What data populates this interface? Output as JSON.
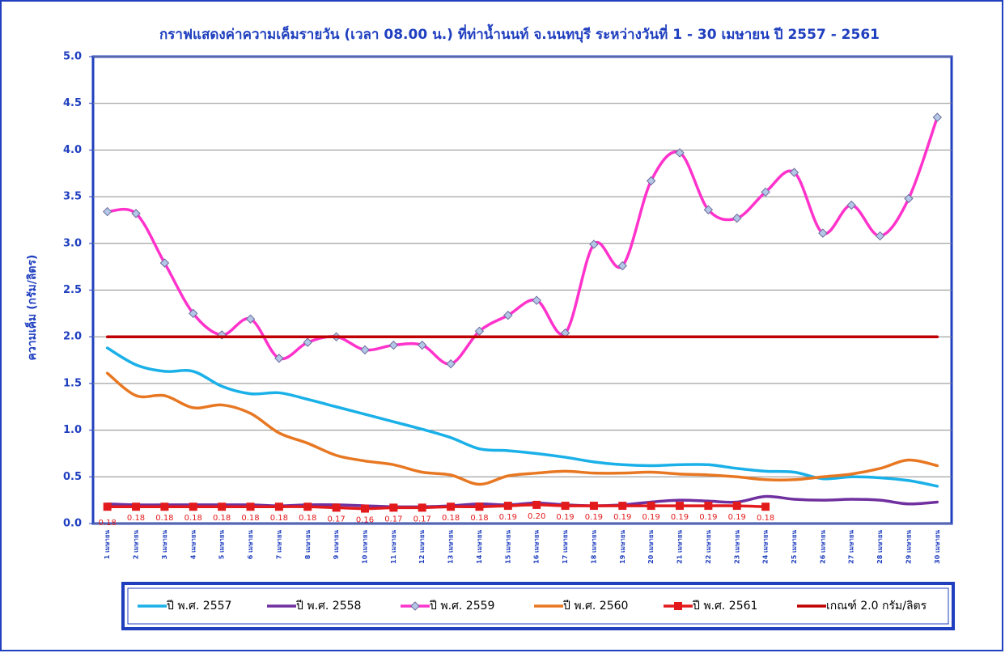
{
  "chart_data": {
    "type": "line",
    "title": "กราฟแสดงค่าความเค็มรายวัน (เวลา 08.00 น.) ที่ท่าน้ำนนท์ จ.นนทบุรี ระหว่างวันที่ 1 - 30 เมษายน ปี 2557 - 2561",
    "y_label": "ความเค็ม (กรัม/ลิตร)",
    "categories": [
      "1 เมษายน",
      "2 เมษายน",
      "3 เมษายน",
      "4 เมษายน",
      "5 เมษายน",
      "6 เมษายน",
      "7 เมษายน",
      "8 เมษายน",
      "9 เมษายน",
      "10 เมษายน",
      "11 เมษายน",
      "12 เมษายน",
      "13 เมษายน",
      "14 เมษายน",
      "15 เมษายน",
      "16 เมษายน",
      "17 เมษายน",
      "18 เมษายน",
      "19 เมษายน",
      "20 เมษายน",
      "21 เมษายน",
      "22 เมษายน",
      "23 เมษายน",
      "24 เมษายน",
      "25 เมษายน",
      "26 เมษายน",
      "27 เมษายน",
      "28 เมษายน",
      "29 เมษายน",
      "30 เมษายน"
    ],
    "ylim": [
      0,
      5
    ],
    "yticks": [
      {
        "value": 0,
        "label": "0.0"
      },
      0.5,
      {
        "value": 1,
        "label": "1.0"
      },
      1.5,
      {
        "value": 2,
        "label": "2.0"
      },
      2.5,
      {
        "value": 3,
        "label": "3.0"
      },
      3.5,
      {
        "value": 4,
        "label": "4.0"
      },
      4.5,
      {
        "value": 5,
        "label": "5.0"
      }
    ],
    "grid": true,
    "legend": "bottom",
    "series": [
      {
        "name": "ปี พ.ศ. 2557",
        "color": "#1ab0e8",
        "values": [
          1.88,
          1.7,
          1.63,
          1.63,
          1.47,
          1.39,
          1.4,
          1.33,
          1.25,
          1.17,
          1.09,
          1.01,
          0.92,
          0.8,
          0.78,
          0.75,
          0.71,
          0.66,
          0.63,
          0.62,
          0.63,
          0.63,
          0.59,
          0.56,
          0.55,
          0.48,
          0.5,
          0.49,
          0.46,
          0.4
        ]
      },
      {
        "name": "ปี พ.ศ. 2558",
        "color": "#7030a0",
        "values": [
          0.21,
          0.2,
          0.2,
          0.2,
          0.2,
          0.2,
          0.19,
          0.2,
          0.2,
          0.19,
          0.18,
          0.18,
          0.19,
          0.21,
          0.2,
          0.22,
          0.2,
          0.19,
          0.2,
          0.23,
          0.25,
          0.24,
          0.23,
          0.29,
          0.26,
          0.25,
          0.26,
          0.25,
          0.21,
          0.23
        ]
      },
      {
        "name": "ปี พ.ศ. 2559",
        "color": "#ff33cc",
        "marker": "diamond",
        "marker_color": "#b4c7e7",
        "values": [
          3.34,
          3.32,
          2.79,
          2.25,
          2.02,
          2.19,
          1.77,
          1.94,
          2.0,
          1.86,
          1.91,
          1.91,
          1.71,
          2.06,
          2.23,
          2.39,
          2.04,
          2.99,
          2.76,
          3.67,
          3.97,
          3.36,
          3.27,
          3.55,
          3.76,
          3.11,
          3.41,
          3.08,
          3.48,
          4.35
        ]
      },
      {
        "name": "ปี พ.ศ. 2560",
        "color": "#e87722",
        "values": [
          1.61,
          1.37,
          1.37,
          1.24,
          1.27,
          1.18,
          0.97,
          0.86,
          0.73,
          0.67,
          0.63,
          0.55,
          0.52,
          0.42,
          0.51,
          0.54,
          0.56,
          0.54,
          0.54,
          0.55,
          0.53,
          0.52,
          0.5,
          0.47,
          0.47,
          0.5,
          0.53,
          0.59,
          0.68,
          0.62
        ]
      },
      {
        "name": "ปี พ.ศ. 2561",
        "color": "#e31a1c",
        "marker": "square",
        "values": [
          0.18,
          0.18,
          0.18,
          0.18,
          0.18,
          0.18,
          0.18,
          0.18,
          0.17,
          0.16,
          0.17,
          0.17,
          0.18,
          0.18,
          0.19,
          0.2,
          0.19,
          0.19,
          0.19,
          0.19,
          0.19,
          0.19,
          0.19,
          0.18,
          null,
          null,
          null,
          null,
          null,
          null
        ],
        "value_labels": [
          "0.18",
          "0.18",
          "0.18",
          "0.18",
          "0.18",
          "0.18",
          "0.18",
          "0.18",
          "0.17",
          "0.16",
          "0.17",
          "0.17",
          "0.18",
          "0.18",
          "0.19",
          "0.20",
          "0.19",
          "0.19",
          "0.19",
          "0.19",
          "0.19",
          "0.19",
          "0.19",
          "0.18",
          null,
          null,
          null,
          null,
          null,
          null
        ]
      },
      {
        "name": "เกณฑ์ 2.0 กรัม/ลิตร",
        "color": "#c00000",
        "values": [
          2,
          2,
          2,
          2,
          2,
          2,
          2,
          2,
          2,
          2,
          2,
          2,
          2,
          2,
          2,
          2,
          2,
          2,
          2,
          2,
          2,
          2,
          2,
          2,
          2,
          2,
          2,
          2,
          2,
          2
        ]
      }
    ]
  }
}
